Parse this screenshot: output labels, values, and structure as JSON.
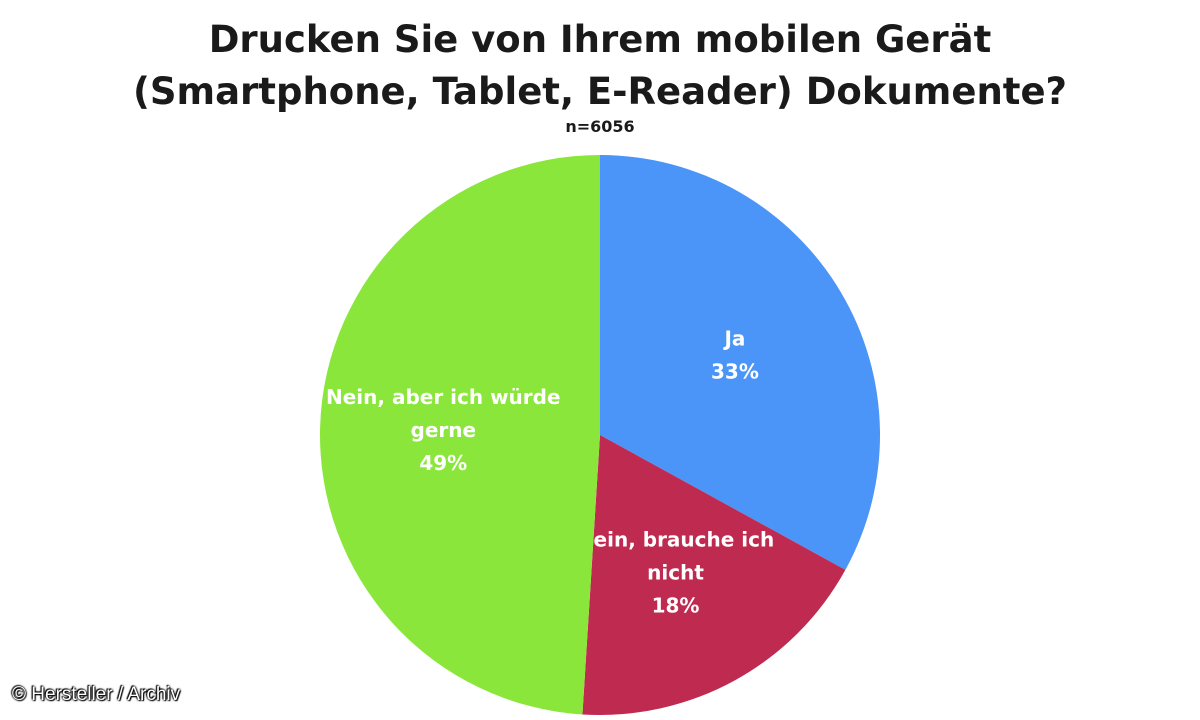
{
  "chart_data": {
    "type": "pie",
    "title_lines": [
      "Drucken Sie von Ihrem mobilen Gerät",
      "(Smartphone, Tablet, E-Reader) Dokumente?"
    ],
    "subtitle": "n=6056",
    "start_angle_deg": 0,
    "direction": "clockwise",
    "slices": [
      {
        "label_lines": [
          "Ja"
        ],
        "value": 33,
        "value_label": "33%",
        "color": "#4b94f8"
      },
      {
        "label_lines": [
          "Nein, brauche ich",
          "nicht"
        ],
        "value": 18,
        "value_label": "18%",
        "color": "#bf2b50"
      },
      {
        "label_lines": [
          "Nein, aber ich würde",
          "gerne"
        ],
        "value": 49,
        "value_label": "49%",
        "color": "#8ae63b"
      }
    ]
  },
  "credit": "© Hersteller / Archiv"
}
